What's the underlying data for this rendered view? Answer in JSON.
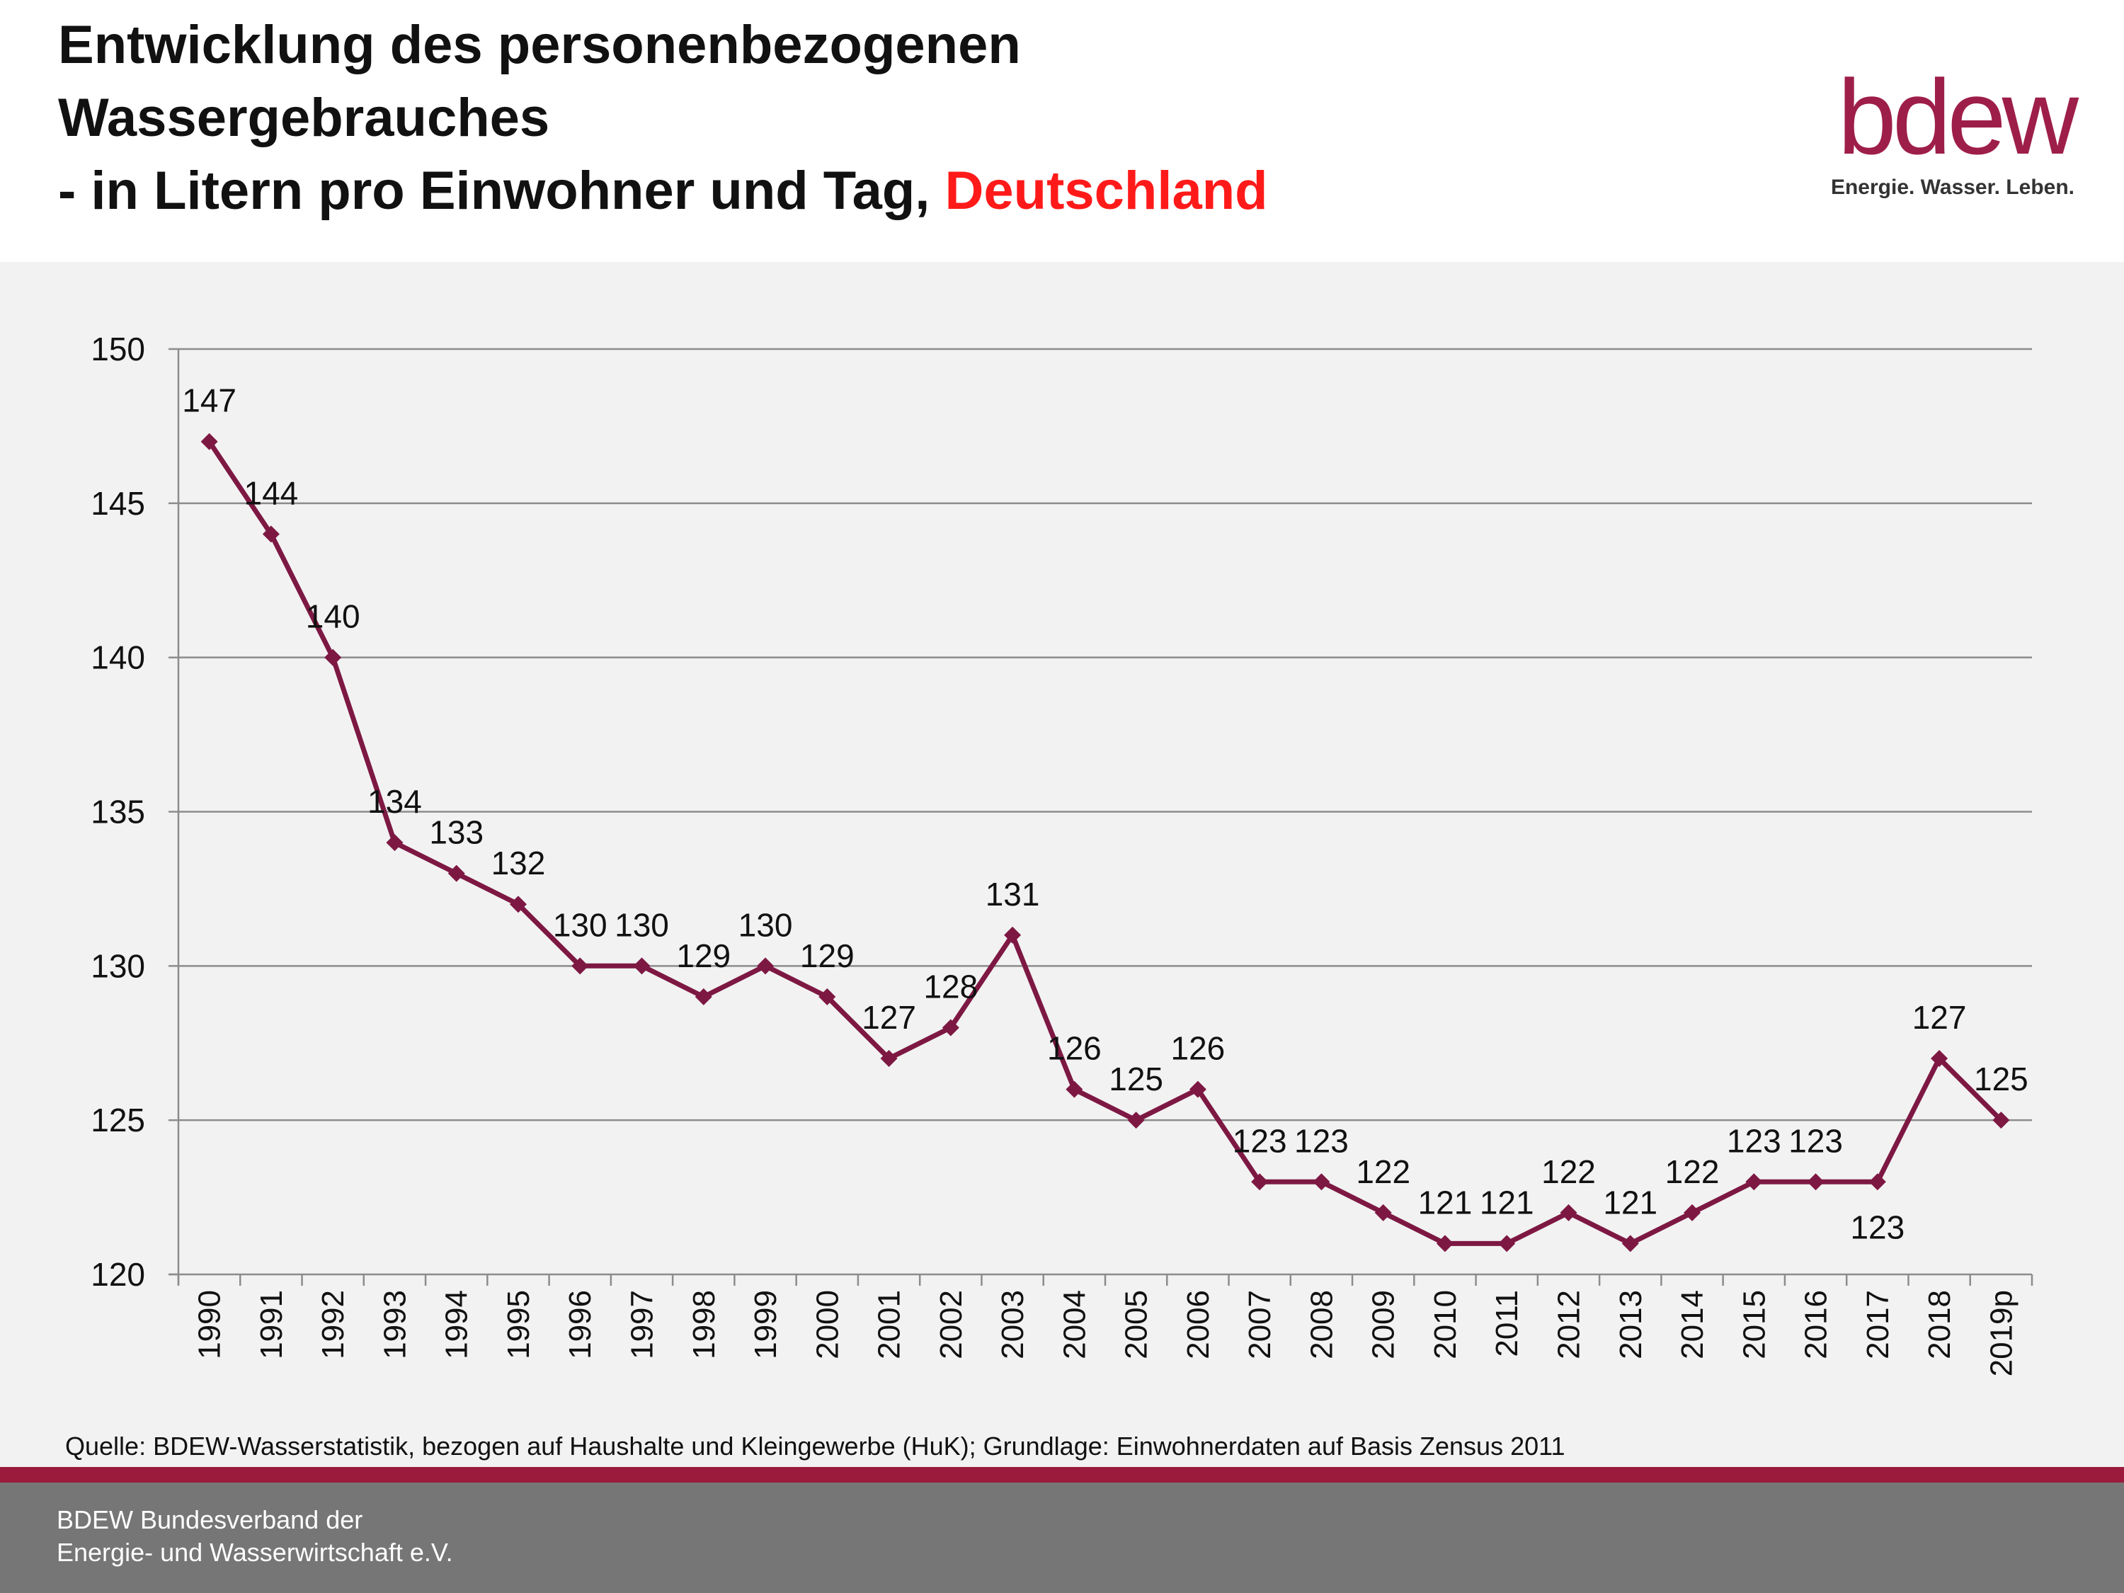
{
  "header": {
    "title_line1": "Entwicklung des personenbezogenen",
    "title_line2": "Wassergebrauches",
    "title_line3_prefix": "- in Litern pro Einwohner und Tag, ",
    "title_line3_accent": "Deutschland"
  },
  "logo": {
    "wordmark": "bdew",
    "tagline": "Energie. Wasser. Leben."
  },
  "colors": {
    "brand": "#9e1e4a",
    "series": "#7d1843",
    "accent_text": "#ff1a1a",
    "plot_background": "#f2f2f2",
    "footer": "#767677",
    "footer_line": "#9b1b3d"
  },
  "chart_data": {
    "type": "line",
    "categories": [
      "1990",
      "1991",
      "1992",
      "1993",
      "1994",
      "1995",
      "1996",
      "1997",
      "1998",
      "1999",
      "2000",
      "2001",
      "2002",
      "2003",
      "2004",
      "2005",
      "2006",
      "2007",
      "2008",
      "2009",
      "2010",
      "2011",
      "2012",
      "2013",
      "2014",
      "2015",
      "2016",
      "2017",
      "2018",
      "2019p"
    ],
    "series": [
      {
        "values": [
          147,
          144,
          140,
          134,
          133,
          132,
          130,
          130,
          129,
          130,
          129,
          127,
          128,
          131,
          126,
          125,
          126,
          123,
          123,
          122,
          121,
          121,
          122,
          121,
          122,
          123,
          123,
          123,
          127,
          125
        ],
        "marker": "diamond"
      }
    ],
    "yticks": [
      "120",
      "125",
      "130",
      "135",
      "140",
      "145",
      "150"
    ],
    "ylim": [
      120,
      150
    ],
    "grid": true,
    "data_labels": true
  },
  "source_note": "Quelle: BDEW-Wasserstatistik, bezogen auf Haushalte und Kleingewerbe (HuK); Grundlage: Einwohnerdaten auf Basis Zensus 2011",
  "footer": {
    "line1": "BDEW Bundesverband der",
    "line2": "Energie- und Wasserwirtschaft e.V."
  }
}
